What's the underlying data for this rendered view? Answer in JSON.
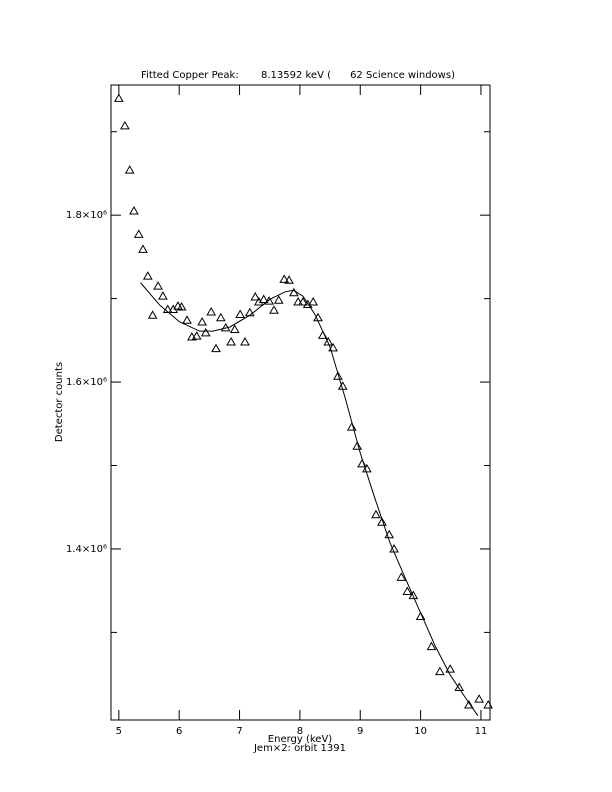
{
  "chart_data": {
    "type": "scatter",
    "title": "Fitted Copper Peak:       8.13592 keV (      62 Science windows)",
    "x_label": "Energy (keV)",
    "subtitle": "Jem×2: orbit 1391",
    "y_label": "Detector counts",
    "xlim": [
      4.87,
      11.15
    ],
    "ylim": [
      1195000,
      1956000
    ],
    "xticks": [
      5,
      6,
      7,
      8,
      9,
      10,
      11
    ],
    "yticks": [
      {
        "value": 1400000,
        "label": "1.4×10⁶"
      },
      {
        "value": 1600000,
        "label": "1.6×10⁶"
      },
      {
        "value": 1800000,
        "label": "1.8×10⁶"
      }
    ],
    "y_minor_ticks": [
      1300000,
      1500000,
      1700000,
      1900000
    ],
    "color": "#000000",
    "series": [
      {
        "marker": "triangle",
        "x": [
          5.0,
          5.1,
          5.18,
          5.25,
          5.33,
          5.4,
          5.48,
          5.56,
          5.65,
          5.73,
          5.81,
          5.9,
          5.98,
          6.04,
          6.13,
          6.21,
          6.29,
          6.38,
          6.44,
          6.53,
          6.61,
          6.69,
          6.77,
          6.86,
          6.92,
          7.01,
          7.09,
          7.17,
          7.26,
          7.32,
          7.4,
          7.49,
          7.57,
          7.65,
          7.74,
          7.82,
          7.9,
          7.97,
          8.05,
          8.13,
          8.22,
          8.3,
          8.38,
          8.47,
          8.55,
          8.63,
          8.71,
          8.86,
          8.95,
          9.03,
          9.11,
          9.26,
          9.36,
          9.48,
          9.56,
          9.68,
          9.78,
          9.88,
          10.0,
          10.18,
          10.32,
          10.49,
          10.64,
          10.8,
          10.97,
          11.12
        ],
        "values": [
          1940000,
          1907000,
          1854000,
          1805000,
          1777000,
          1759000,
          1727000,
          1680000,
          1715000,
          1703000,
          1687000,
          1687000,
          1691000,
          1690000,
          1674000,
          1654000,
          1655000,
          1672000,
          1659000,
          1684000,
          1640000,
          1677000,
          1665000,
          1648000,
          1663000,
          1681000,
          1648000,
          1683000,
          1702000,
          1696000,
          1699000,
          1697000,
          1686000,
          1698000,
          1723000,
          1722000,
          1707000,
          1696000,
          1696000,
          1693000,
          1696000,
          1677000,
          1656000,
          1648000,
          1641000,
          1607000,
          1595000,
          1546000,
          1523000,
          1502000,
          1496000,
          1441000,
          1432000,
          1417000,
          1400000,
          1366000,
          1349000,
          1344000,
          1319000,
          1283000,
          1253000,
          1256000,
          1234000,
          1213000,
          1220000,
          1213000
        ]
      },
      {
        "marker": "line",
        "x": [
          5.36,
          5.68,
          6.01,
          6.34,
          6.56,
          6.84,
          7.17,
          7.5,
          7.75,
          7.89,
          8.05,
          8.25,
          8.5,
          8.75,
          9.0,
          9.25,
          9.49,
          9.74,
          9.99,
          10.24,
          10.49,
          10.74,
          10.95
        ],
        "values": [
          1719000,
          1692000,
          1672000,
          1661000,
          1661000,
          1666000,
          1680000,
          1699000,
          1708000,
          1710000,
          1703000,
          1681000,
          1642000,
          1581000,
          1515000,
          1459000,
          1408000,
          1366000,
          1325000,
          1284000,
          1249000,
          1222000,
          1200000
        ]
      }
    ]
  }
}
